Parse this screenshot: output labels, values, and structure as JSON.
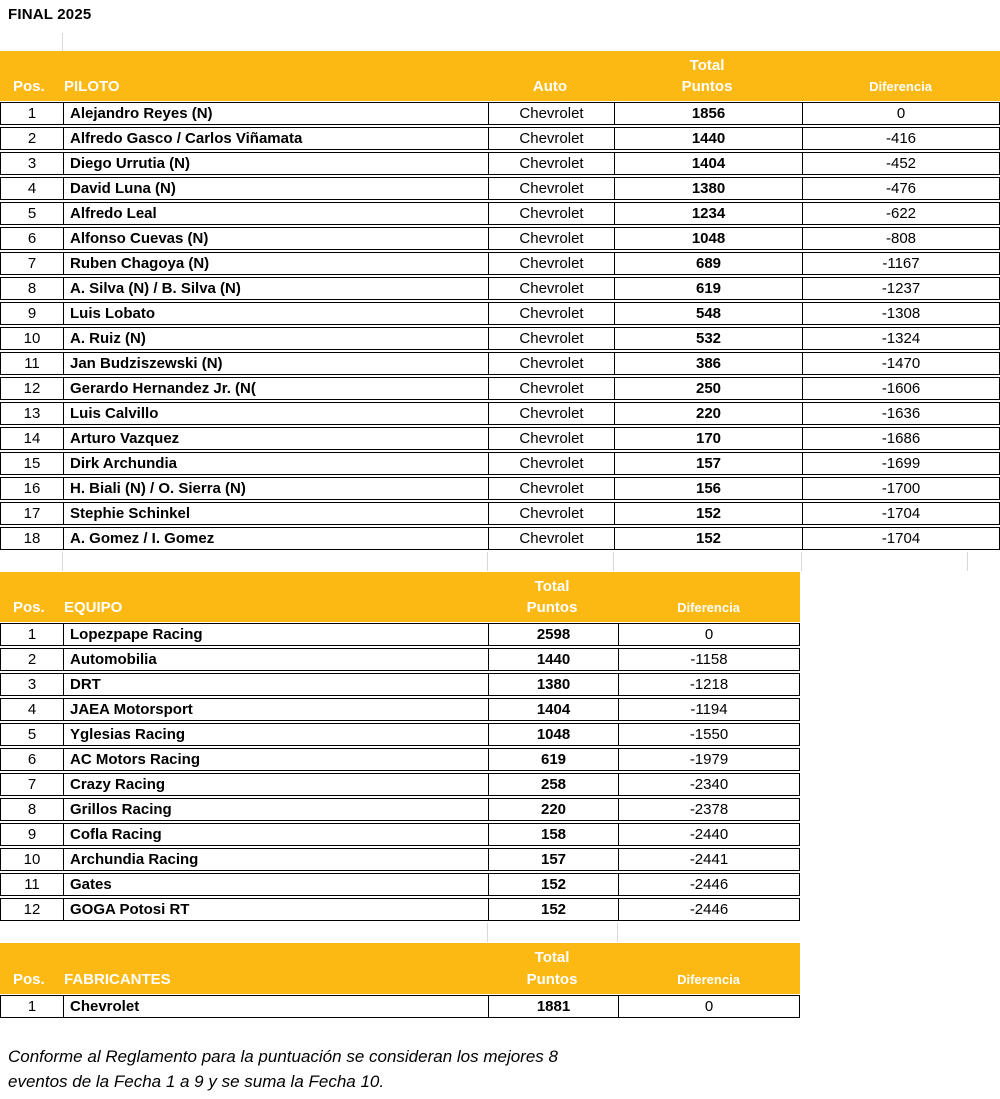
{
  "page_title": "FINAL 2025",
  "colors": {
    "header_background": "#FDB913",
    "header_text": "#FFFFFF",
    "row_border": "#000000",
    "gridline": "#D9D9D9",
    "body_text": "#000000"
  },
  "pilots_table": {
    "header": {
      "pos": "Pos.",
      "name": "PILOTO",
      "auto": "Auto",
      "total": "Total",
      "puntos": "Puntos",
      "diferencia": "Diferencia"
    },
    "rows": [
      {
        "pos": "1",
        "name": "Alejandro Reyes (N)",
        "auto": "Chevrolet",
        "points": "1856",
        "diff": "0"
      },
      {
        "pos": "2",
        "name": "Alfredo Gasco / Carlos Viñamata",
        "auto": "Chevrolet",
        "points": "1440",
        "diff": "-416"
      },
      {
        "pos": "3",
        "name": "Diego Urrutia (N)",
        "auto": "Chevrolet",
        "points": "1404",
        "diff": "-452"
      },
      {
        "pos": "4",
        "name": "David Luna (N)",
        "auto": "Chevrolet",
        "points": "1380",
        "diff": "-476"
      },
      {
        "pos": "5",
        "name": "Alfredo Leal",
        "auto": "Chevrolet",
        "points": "1234",
        "diff": "-622"
      },
      {
        "pos": "6",
        "name": "Alfonso Cuevas (N)",
        "auto": "Chevrolet",
        "points": "1048",
        "diff": "-808"
      },
      {
        "pos": "7",
        "name": "Ruben Chagoya (N)",
        "auto": "Chevrolet",
        "points": "689",
        "diff": "-1167"
      },
      {
        "pos": "8",
        "name": "A. Silva (N) / B. Silva (N)",
        "auto": "Chevrolet",
        "points": "619",
        "diff": "-1237"
      },
      {
        "pos": "9",
        "name": "Luis Lobato",
        "auto": "Chevrolet",
        "points": "548",
        "diff": "-1308"
      },
      {
        "pos": "10",
        "name": "A. Ruiz (N)",
        "auto": "Chevrolet",
        "points": "532",
        "diff": "-1324"
      },
      {
        "pos": "11",
        "name": "Jan Budziszewski (N)",
        "auto": "Chevrolet",
        "points": "386",
        "diff": "-1470"
      },
      {
        "pos": "12",
        "name": "Gerardo Hernandez Jr. (N(",
        "auto": "Chevrolet",
        "points": "250",
        "diff": "-1606"
      },
      {
        "pos": "13",
        "name": "Luis Calvillo",
        "auto": "Chevrolet",
        "points": "220",
        "diff": "-1636"
      },
      {
        "pos": "14",
        "name": "Arturo Vazquez",
        "auto": "Chevrolet",
        "points": "170",
        "diff": "-1686"
      },
      {
        "pos": "15",
        "name": "Dirk Archundia",
        "auto": "Chevrolet",
        "points": "157",
        "diff": "-1699"
      },
      {
        "pos": "16",
        "name": "H. Biali (N) / O. Sierra (N)",
        "auto": "Chevrolet",
        "points": "156",
        "diff": "-1700"
      },
      {
        "pos": "17",
        "name": "Stephie Schinkel",
        "auto": "Chevrolet",
        "points": "152",
        "diff": "-1704"
      },
      {
        "pos": "18",
        "name": "A. Gomez / I. Gomez",
        "auto": "Chevrolet",
        "points": "152",
        "diff": "-1704"
      }
    ]
  },
  "teams_table": {
    "header": {
      "pos": "Pos.",
      "name": "EQUIPO",
      "total": "Total",
      "puntos": "Puntos",
      "diferencia": "Diferencia"
    },
    "rows": [
      {
        "pos": "1",
        "name": "Lopezpape Racing",
        "points": "2598",
        "diff": "0"
      },
      {
        "pos": "2",
        "name": "Automobilia",
        "points": "1440",
        "diff": "-1158"
      },
      {
        "pos": "3",
        "name": "DRT",
        "points": "1380",
        "diff": "-1218"
      },
      {
        "pos": "4",
        "name": "JAEA Motorsport",
        "points": "1404",
        "diff": "-1194"
      },
      {
        "pos": "5",
        "name": "Yglesias Racing",
        "points": "1048",
        "diff": "-1550"
      },
      {
        "pos": "6",
        "name": "AC Motors Racing",
        "points": "619",
        "diff": "-1979"
      },
      {
        "pos": "7",
        "name": "Crazy Racing",
        "points": "258",
        "diff": "-2340"
      },
      {
        "pos": "8",
        "name": "Grillos Racing",
        "points": "220",
        "diff": "-2378"
      },
      {
        "pos": "9",
        "name": "Cofla Racing",
        "points": "158",
        "diff": "-2440"
      },
      {
        "pos": "10",
        "name": "Archundia Racing",
        "points": "157",
        "diff": "-2441"
      },
      {
        "pos": "11",
        "name": "Gates",
        "points": "152",
        "diff": "-2446"
      },
      {
        "pos": "12",
        "name": "GOGA Potosi RT",
        "points": "152",
        "diff": "-2446"
      }
    ]
  },
  "manufacturers_table": {
    "header": {
      "pos": "Pos.",
      "name": "FABRICANTES",
      "total": "Total",
      "puntos": "Puntos",
      "diferencia": "Diferencia"
    },
    "rows": [
      {
        "pos": "1",
        "name": "Chevrolet",
        "points": "1881",
        "diff": "0"
      }
    ]
  },
  "footer": {
    "line1": "Conforme al Reglamento para la puntuación se consideran los mejores 8",
    "line2": "eventos de la Fecha 1 a 9 y se suma la Fecha 10."
  }
}
